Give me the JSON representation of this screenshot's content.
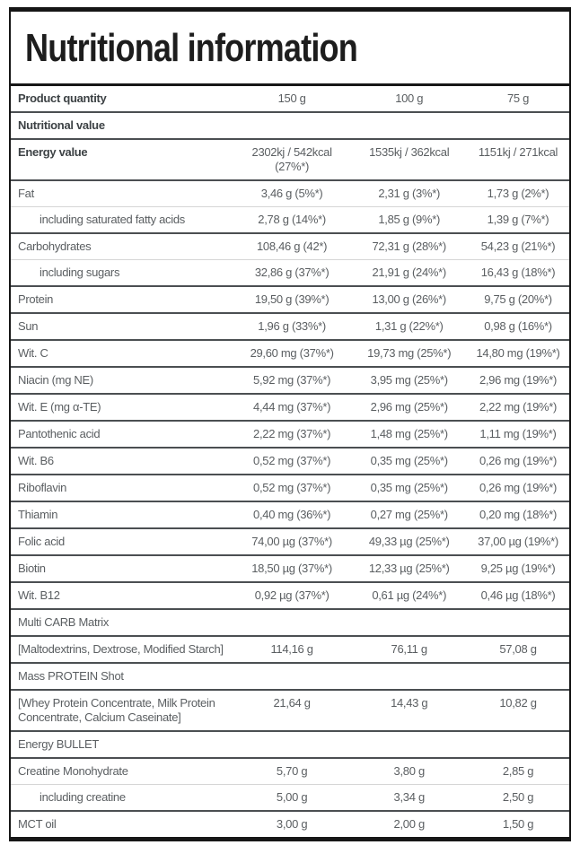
{
  "title": "Nutritional information",
  "colors": {
    "border_dark": "#161616",
    "row_separator_dark": "#4b4f52",
    "row_separator_light": "#d6d6d6",
    "text_regular": "#5a5e61",
    "text_bold": "#3d4245",
    "background": "#ffffff"
  },
  "table": {
    "columns": [
      "Product quantity",
      "150 g",
      "100 g",
      "75 g"
    ],
    "rows": [
      {
        "type": "cols-header",
        "label": "Product quantity",
        "values": [
          "150 g",
          "100 g",
          "75 g"
        ]
      },
      {
        "type": "section-bold",
        "label": "Nutritional value",
        "values": [
          "",
          "",
          ""
        ]
      },
      {
        "type": "bold",
        "label": "Energy value",
        "values": [
          "2302kj / 542kcal (27%*)",
          "1535kj / 362kcal",
          "1151kj / 271kcal"
        ]
      },
      {
        "type": "item",
        "label": "Fat",
        "values": [
          "3,46 g (5%*)",
          "2,31 g (3%*)",
          "1,73 g (2%*)"
        ]
      },
      {
        "type": "sub",
        "label": "including saturated fatty acids",
        "values": [
          "2,78 g (14%*)",
          "1,85 g (9%*)",
          "1,39 g (7%*)"
        ]
      },
      {
        "type": "item",
        "label": "Carbohydrates",
        "values": [
          "108,46 g (42*)",
          "72,31 g (28%*)",
          "54,23 g (21%*)"
        ]
      },
      {
        "type": "sub",
        "label": "including sugars",
        "values": [
          "32,86 g (37%*)",
          "21,91 g (24%*)",
          "16,43 g (18%*)"
        ]
      },
      {
        "type": "item",
        "label": "Protein",
        "values": [
          "19,50 g (39%*)",
          "13,00 g (26%*)",
          "9,75 g (20%*)"
        ]
      },
      {
        "type": "item",
        "label": "Sun",
        "values": [
          "1,96 g (33%*)",
          "1,31 g (22%*)",
          "0,98 g (16%*)"
        ]
      },
      {
        "type": "item",
        "label": "Wit. C",
        "values": [
          "29,60 mg (37%*)",
          "19,73 mg (25%*)",
          "14,80 mg (19%*)"
        ]
      },
      {
        "type": "item",
        "label": "Niacin (mg NE)",
        "values": [
          "5,92 mg (37%*)",
          "3,95 mg (25%*)",
          "2,96 mg (19%*)"
        ]
      },
      {
        "type": "item",
        "label": "Wit. E (mg α-TE)",
        "values": [
          "4,44 mg (37%*)",
          "2,96 mg (25%*)",
          "2,22 mg (19%*)"
        ]
      },
      {
        "type": "item",
        "label": "Pantothenic acid",
        "values": [
          "2,22 mg (37%*)",
          "1,48 mg (25%*)",
          "1,11 mg (19%*)"
        ]
      },
      {
        "type": "item",
        "label": "Wit. B6",
        "values": [
          "0,52 mg (37%*)",
          "0,35 mg (25%*)",
          "0,26 mg (19%*)"
        ]
      },
      {
        "type": "item",
        "label": "Riboflavin",
        "values": [
          "0,52 mg (37%*)",
          "0,35 mg (25%*)",
          "0,26 mg (19%*)"
        ]
      },
      {
        "type": "item",
        "label": "Thiamin",
        "values": [
          "0,40 mg (36%*)",
          "0,27 mg (25%*)",
          "0,20 mg (18%*)"
        ]
      },
      {
        "type": "item",
        "label": "Folic acid",
        "values": [
          "74,00 µg (37%*)",
          "49,33 µg (25%*)",
          "37,00 µg (19%*)"
        ]
      },
      {
        "type": "item",
        "label": "Biotin",
        "values": [
          "18,50 µg (37%*)",
          "12,33 µg (25%*)",
          "9,25 µg (19%*)"
        ]
      },
      {
        "type": "item",
        "label": "Wit. B12",
        "values": [
          "0,92 µg (37%*)",
          "0,61 µg (24%*)",
          "0,46 µg (18%*)"
        ]
      },
      {
        "type": "section",
        "label": "Multi CARB Matrix",
        "values": [
          "",
          "",
          ""
        ]
      },
      {
        "type": "item",
        "label": "[Maltodextrins, Dextrose, Modified Starch]",
        "values": [
          "114,16 g",
          "76,11 g",
          "57,08 g"
        ]
      },
      {
        "type": "section",
        "label": "Mass PROTEIN Shot",
        "values": [
          "",
          "",
          ""
        ]
      },
      {
        "type": "item",
        "label": "[Whey Protein Concentrate, Milk Protein Concentrate, Calcium Caseinate]",
        "values": [
          "21,64 g",
          "14,43 g",
          "10,82 g"
        ]
      },
      {
        "type": "section",
        "label": "Energy BULLET",
        "values": [
          "",
          "",
          ""
        ]
      },
      {
        "type": "item",
        "label": "Creatine Monohydrate",
        "values": [
          "5,70 g",
          "3,80 g",
          "2,85 g"
        ]
      },
      {
        "type": "sub",
        "label": "including creatine",
        "values": [
          "5,00 g",
          "3,34 g",
          "2,50 g"
        ]
      },
      {
        "type": "item",
        "label": "MCT oil",
        "values": [
          "3,00 g",
          "2,00 g",
          "1,50 g"
        ]
      }
    ]
  }
}
